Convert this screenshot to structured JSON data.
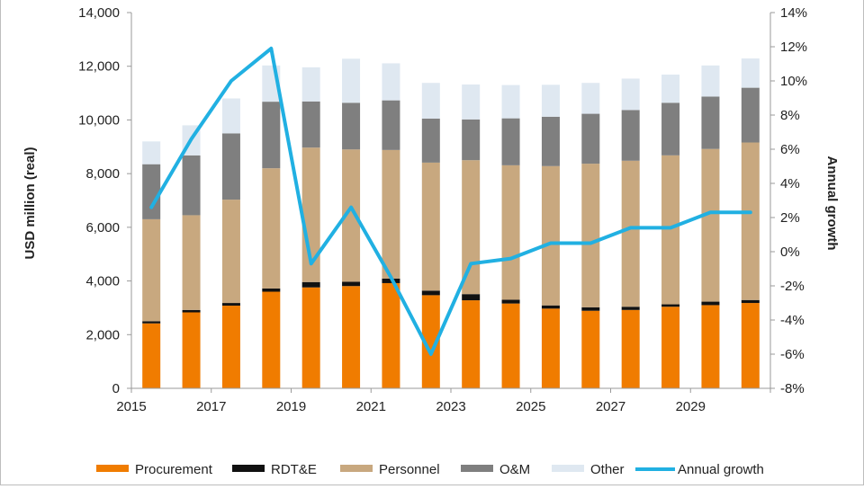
{
  "chart_data": {
    "type": "bar",
    "subtype": "stacked-bar-with-line",
    "title": "",
    "ylabel": "USD million  (real)",
    "y2label": "Annual growth",
    "ylim": [
      0,
      14000
    ],
    "y2lim": [
      -8,
      14
    ],
    "y_ticks": [
      "0",
      "2,000",
      "4,000",
      "6,000",
      "8,000",
      "10,000",
      "12,000",
      "14,000"
    ],
    "y2_ticks": [
      "-8%",
      "-6%",
      "-4%",
      "-2%",
      "0%",
      "2%",
      "4%",
      "6%",
      "8%",
      "10%",
      "12%",
      "14%"
    ],
    "x_tick_labels": [
      "2015",
      "2017",
      "2019",
      "2021",
      "2023",
      "2025",
      "2027",
      "2029"
    ],
    "categories": [
      "2015",
      "2016",
      "2017",
      "2018",
      "2019",
      "2020",
      "2021",
      "2022",
      "2023",
      "2024",
      "2025",
      "2026",
      "2027",
      "2028",
      "2029",
      "2030"
    ],
    "series": [
      {
        "name": "Procurement",
        "color": "#f07c00",
        "values": [
          2420,
          2830,
          3080,
          3600,
          3760,
          3810,
          3920,
          3470,
          3280,
          3160,
          2970,
          2890,
          2920,
          3040,
          3100,
          3180
        ]
      },
      {
        "name": "RDT&E",
        "color": "#111111",
        "values": [
          80,
          90,
          100,
          120,
          200,
          160,
          170,
          170,
          230,
          140,
          120,
          130,
          120,
          90,
          130,
          110
        ]
      },
      {
        "name": "Personnel",
        "color": "#c8a87f",
        "values": [
          3800,
          3530,
          3850,
          4480,
          5010,
          4930,
          4790,
          4770,
          4990,
          5010,
          5190,
          5350,
          5440,
          5550,
          5690,
          5870
        ]
      },
      {
        "name": "O&M",
        "color": "#7f7f7f",
        "values": [
          2050,
          2230,
          2470,
          2480,
          1720,
          1740,
          1850,
          1640,
          1520,
          1750,
          1840,
          1860,
          1890,
          1960,
          1950,
          2040
        ]
      },
      {
        "name": "Other",
        "color": "#dfe8f1",
        "values": [
          850,
          1120,
          1300,
          1350,
          1270,
          1640,
          1380,
          1330,
          1300,
          1240,
          1190,
          1150,
          1170,
          1050,
          1160,
          1090
        ]
      }
    ],
    "line": {
      "name": "Annual growth",
      "color": "#21b0e2",
      "axis": "right",
      "values": [
        2.6,
        6.6,
        10.0,
        11.9,
        -0.7,
        2.6,
        -1.5,
        -6.0,
        -0.7,
        -0.4,
        0.5,
        0.5,
        1.4,
        1.4,
        2.3,
        2.3
      ]
    },
    "legend": {
      "position": "bottom",
      "items": [
        "Procurement",
        "RDT&E",
        "Personnel",
        "O&M",
        "Other",
        "Annual growth"
      ]
    },
    "grid": false
  }
}
